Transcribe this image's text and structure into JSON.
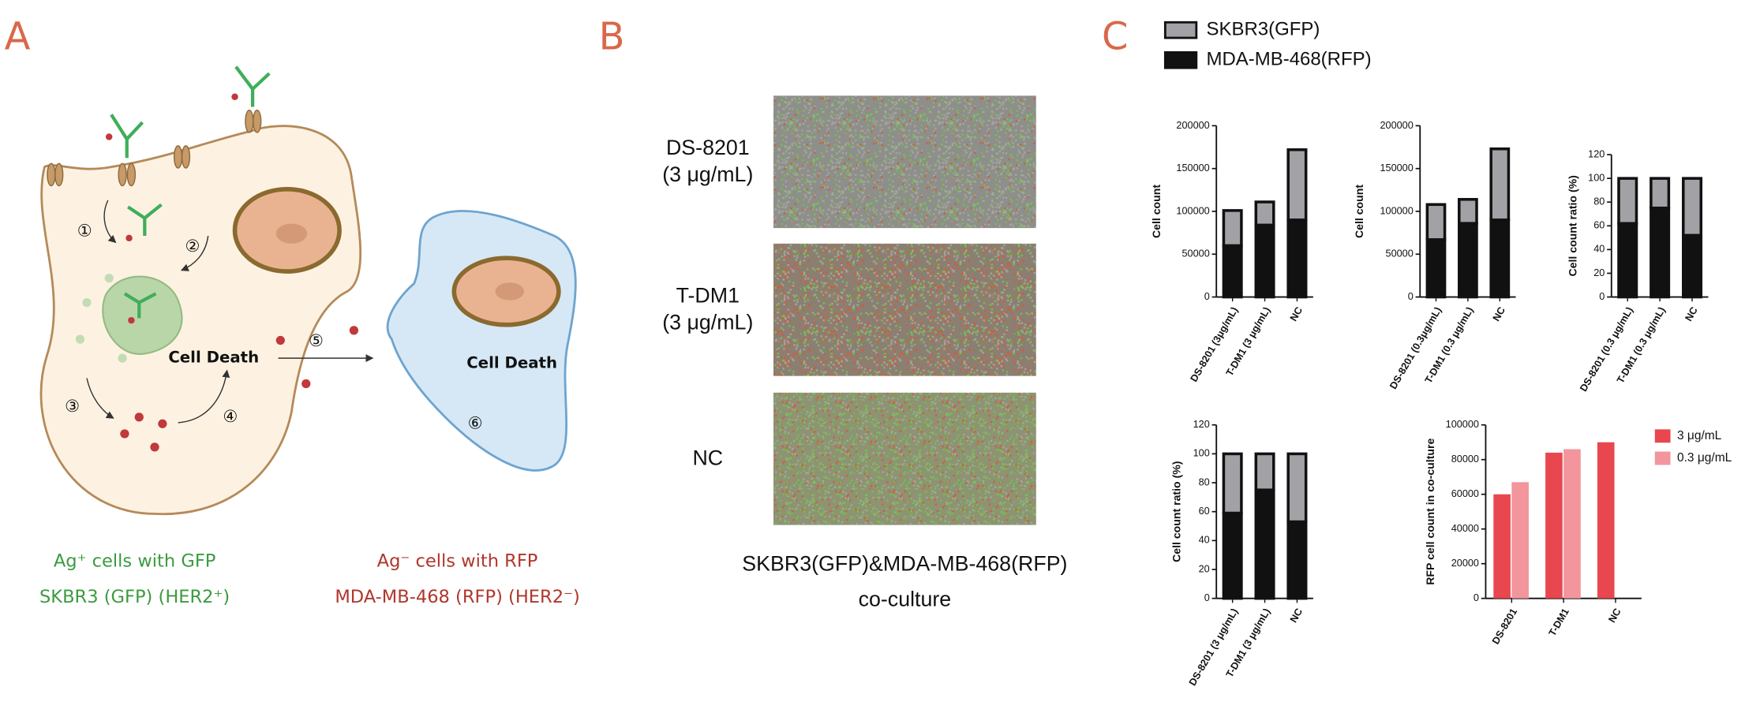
{
  "panel_a": {
    "label": "A",
    "steps": [
      "①",
      "②",
      "③",
      "④",
      "⑤",
      "⑥"
    ],
    "cell_death_left": "Cell Death",
    "cell_death_right": "Cell Death",
    "left_caption": [
      "Ag⁺ cells with GFP",
      "SKBR3 (GFP) (HER2⁺)"
    ],
    "right_caption": [
      "Ag⁻ cells with RFP",
      "MDA-MB-468 (RFP) (HER2⁻)"
    ]
  },
  "panel_b": {
    "label": "B",
    "rows": [
      {
        "label": [
          "DS-8201",
          "(3 μg/mL)"
        ]
      },
      {
        "label": [
          "T-DM1",
          "(3 μg/mL)"
        ]
      },
      {
        "label": [
          "NC"
        ]
      }
    ],
    "caption": [
      "SKBR3(GFP)&MDA-MB-468(RFP)",
      "co-culture"
    ]
  },
  "panel_c": {
    "label": "C"
  },
  "chart_data": [
    {
      "type": "stacked_bar",
      "y_label": "Cell count",
      "categories": [
        "DS-8201 (3μg/mL)",
        "T-DM1 (3 μg/mL)",
        "NC"
      ],
      "series": [
        {
          "name": "MDA-MB-468(RFP)",
          "color": "#111111",
          "values": [
            60000,
            84000,
            90000
          ]
        },
        {
          "name": "SKBR3(GFP)",
          "color": "#a2a2a6",
          "values": [
            41000,
            27000,
            82000
          ]
        }
      ],
      "ylim": [
        0,
        200000
      ],
      "yticks": [
        0,
        50000,
        100000,
        150000,
        200000
      ]
    },
    {
      "type": "stacked_bar",
      "y_label": "Cell count",
      "categories": [
        "DS-8201 (0.3μg/mL)",
        "T-DM1 (0.3 μg/mL)",
        "NC"
      ],
      "series": [
        {
          "color": "#111111",
          "values": [
            67000,
            86000,
            90000
          ]
        },
        {
          "color": "#a2a2a6",
          "values": [
            41000,
            28000,
            83000
          ]
        }
      ],
      "ylim": [
        0,
        200000
      ],
      "yticks": [
        0,
        50000,
        100000,
        150000,
        200000
      ]
    },
    {
      "type": "stacked_bar",
      "y_label": "Cell count ratio (%)",
      "categories": [
        "DS-8201 (0.3 μg/mL)",
        "T-DM1 (0.3 μg/mL)",
        "NC"
      ],
      "series": [
        {
          "color": "#111111",
          "values": [
            62,
            75,
            52
          ]
        },
        {
          "color": "#a2a2a6",
          "values": [
            38,
            25,
            48
          ]
        }
      ],
      "ylim": [
        0,
        120
      ],
      "yticks": [
        0,
        20,
        40,
        60,
        80,
        100,
        120
      ]
    },
    {
      "type": "stacked_bar",
      "y_label": "Cell count ratio (%)",
      "categories": [
        "DS-8201 (3 μg/mL)",
        "T-DM1 (3 μg/mL)",
        "NC"
      ],
      "series": [
        {
          "color": "#111111",
          "values": [
            59,
            75,
            53
          ]
        },
        {
          "color": "#a2a2a6",
          "values": [
            41,
            25,
            47
          ]
        }
      ],
      "ylim": [
        0,
        120
      ],
      "yticks": [
        0,
        20,
        40,
        60,
        80,
        100,
        120
      ]
    },
    {
      "type": "bar",
      "y_label": "RFP cell count in co-culture",
      "categories": [
        "DS-8201",
        "T-DM1",
        "NC"
      ],
      "series": [
        {
          "name": "3 μg/mL",
          "color": "#e8474f",
          "values": [
            60000,
            84000,
            90000
          ]
        },
        {
          "name": "0.3 μg/mL",
          "color": "#f2959d",
          "values": [
            67000,
            86000,
            null
          ]
        }
      ],
      "ylim": [
        0,
        100000
      ],
      "yticks": [
        0,
        20000,
        40000,
        60000,
        80000,
        100000
      ]
    }
  ]
}
